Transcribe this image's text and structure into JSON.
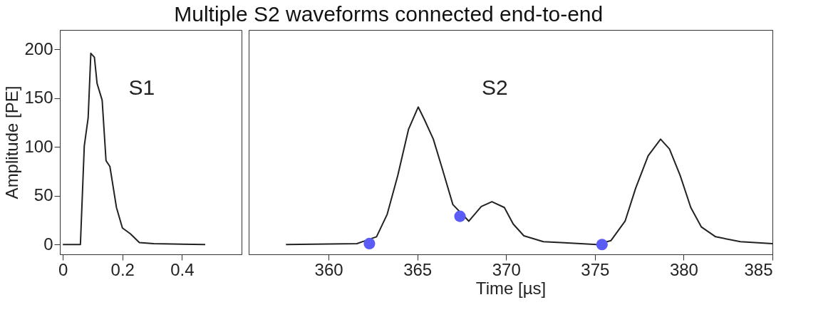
{
  "chart_data": [
    {
      "type": "line",
      "title": "Multiple S2 waveforms connected end-to-end",
      "ylabel": "Amplitude [PE]",
      "xlim": [
        -0.01,
        0.6
      ],
      "xticks": [
        0,
        0.2,
        0.4
      ],
      "ylim": [
        -10,
        220
      ],
      "yticks": [
        0,
        50,
        100,
        150,
        200
      ],
      "grid": false,
      "annotations": [
        "S1"
      ],
      "series": [
        {
          "color": "#222222",
          "x": [
            0,
            0.059,
            0.072,
            0.085,
            0.094,
            0.106,
            0.115,
            0.132,
            0.145,
            0.158,
            0.18,
            0.2,
            0.227,
            0.257,
            0.305,
            0.478
          ],
          "values": [
            0,
            0,
            101,
            130,
            196,
            192,
            165,
            148,
            86,
            80,
            38,
            17,
            11,
            2,
            1,
            0
          ]
        }
      ]
    },
    {
      "type": "line",
      "xlabel": "Time [µs]",
      "xlim": [
        355.5,
        385
      ],
      "xticks": [
        360,
        365,
        370,
        375,
        380,
        385
      ],
      "ylim": [
        -10,
        220
      ],
      "tick_labels": "x",
      "grid": false,
      "annotations": [
        "S2"
      ],
      "series": [
        {
          "color": "#222222",
          "x": [
            357.6,
            361.6,
            362.7,
            363.3,
            363.9,
            364.5,
            365.05,
            365.4,
            365.9,
            366.4,
            367.0,
            367.9,
            368.6,
            369.2,
            369.9,
            370.4,
            371.0,
            372.1,
            373.1,
            375.1,
            375.9,
            376.7,
            377.3,
            378.0,
            378.7,
            379.2,
            379.8,
            380.4,
            381.0,
            381.8,
            383.2,
            385
          ],
          "values": [
            0,
            1,
            8,
            31,
            71,
            118,
            141,
            128,
            108,
            78,
            41,
            24,
            39,
            44,
            38,
            21,
            9,
            3,
            2,
            0,
            4,
            24,
            58,
            91,
            108,
            98,
            71,
            38,
            18,
            8,
            3,
            1
          ]
        },
        {
          "type": "scatter",
          "color": "#5b5bf5",
          "marker": "circle",
          "x": [
            362.3,
            367.4,
            375.4
          ],
          "values": [
            1,
            29,
            0
          ]
        }
      ]
    }
  ]
}
